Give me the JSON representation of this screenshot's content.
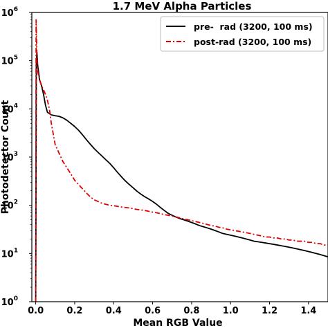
{
  "chart_data": {
    "type": "line",
    "title": "1.7 MeV Alpha Particles",
    "xlabel": "Mean RGB Value",
    "ylabel": "Photodetector Count",
    "xlim": [
      -0.02,
      1.5
    ],
    "ylim": [
      1,
      1000000
    ],
    "yscale": "log",
    "x_ticks": [
      "0.0",
      "0.2",
      "0.4",
      "0.6",
      "0.8",
      "1.0",
      "1.2",
      "1.4"
    ],
    "y_ticks": [
      {
        "base": "10",
        "exp": "0"
      },
      {
        "base": "10",
        "exp": "1"
      },
      {
        "base": "10",
        "exp": "2"
      },
      {
        "base": "10",
        "exp": "3"
      },
      {
        "base": "10",
        "exp": "4"
      },
      {
        "base": "10",
        "exp": "5"
      },
      {
        "base": "10",
        "exp": "6"
      }
    ],
    "legend_position": "top-right",
    "series": [
      {
        "name": "pre-  rad (3200, 100 ms)",
        "color": "#000000",
        "dash": "solid",
        "x": [
          0.0,
          0.003,
          0.006,
          0.01,
          0.02,
          0.03,
          0.04,
          0.05,
          0.06,
          0.08,
          0.1,
          0.12,
          0.14,
          0.16,
          0.18,
          0.2,
          0.22,
          0.24,
          0.26,
          0.28,
          0.3,
          0.32,
          0.34,
          0.36,
          0.38,
          0.4,
          0.42,
          0.44,
          0.46,
          0.48,
          0.5,
          0.52,
          0.54,
          0.56,
          0.58,
          0.6,
          0.62,
          0.64,
          0.66,
          0.68,
          0.7,
          0.72,
          0.74,
          0.76,
          0.78,
          0.8,
          0.82,
          0.84,
          0.86,
          0.88,
          0.9,
          0.92,
          0.94,
          0.96,
          0.98,
          1.0,
          1.02,
          1.04,
          1.06,
          1.08,
          1.1,
          1.12,
          1.14,
          1.16,
          1.18,
          1.2,
          1.22,
          1.24,
          1.26,
          1.28,
          1.3,
          1.32,
          1.34,
          1.36,
          1.38,
          1.4,
          1.42,
          1.44,
          1.46,
          1.48,
          1.5
        ],
        "y": [
          1,
          100000,
          150000,
          80000,
          40000,
          30000,
          20000,
          12000,
          8500,
          7500,
          7200,
          7000,
          6500,
          5800,
          5000,
          4300,
          3600,
          2900,
          2300,
          1850,
          1500,
          1250,
          1050,
          880,
          740,
          600,
          480,
          390,
          320,
          270,
          230,
          195,
          170,
          150,
          135,
          120,
          105,
          90,
          78,
          68,
          62,
          57,
          53,
          50,
          47,
          44,
          41,
          38,
          36,
          34,
          32,
          30,
          28,
          26,
          25,
          24,
          23,
          22,
          21,
          20,
          19,
          18,
          17.5,
          17,
          16.5,
          16,
          15.5,
          15,
          14.5,
          14,
          13.5,
          13,
          12.5,
          12,
          11.5,
          11,
          10.5,
          10,
          9.5,
          9,
          8.5
        ]
      },
      {
        "name": "post-rad (3200, 100 ms)",
        "color": "#e00000",
        "dash": "dashdot",
        "x": [
          0.0,
          0.002,
          0.004,
          0.006,
          0.01,
          0.02,
          0.03,
          0.04,
          0.05,
          0.06,
          0.07,
          0.08,
          0.09,
          0.1,
          0.12,
          0.14,
          0.16,
          0.18,
          0.2,
          0.22,
          0.24,
          0.26,
          0.28,
          0.3,
          0.32,
          0.34,
          0.36,
          0.38,
          0.4,
          0.42,
          0.44,
          0.46,
          0.48,
          0.5,
          0.52,
          0.54,
          0.56,
          0.58,
          0.6,
          0.62,
          0.64,
          0.66,
          0.68,
          0.7,
          0.72,
          0.74,
          0.76,
          0.78,
          0.8,
          0.82,
          0.84,
          0.86,
          0.88,
          0.9,
          0.92,
          0.94,
          0.96,
          0.98,
          1.0,
          1.02,
          1.04,
          1.06,
          1.08,
          1.1,
          1.12,
          1.14,
          1.16,
          1.18,
          1.2,
          1.22,
          1.24,
          1.26,
          1.28,
          1.3,
          1.32,
          1.34,
          1.36,
          1.38,
          1.4,
          1.42,
          1.44,
          1.46,
          1.48,
          1.5
        ],
        "y": [
          1,
          700000,
          300000,
          120000,
          60000,
          40000,
          30000,
          25000,
          20000,
          15000,
          10000,
          5000,
          3000,
          1800,
          1200,
          800,
          600,
          450,
          330,
          270,
          220,
          180,
          150,
          130,
          120,
          110,
          105,
          100,
          98,
          95,
          92,
          90,
          88,
          85,
          82,
          80,
          78,
          75,
          72,
          70,
          67,
          64,
          62,
          60,
          57,
          55,
          52,
          50,
          48,
          46,
          44,
          42,
          40,
          38,
          37,
          35,
          34,
          32,
          31,
          30,
          29,
          28,
          27,
          26,
          25,
          24,
          23,
          22,
          22,
          21,
          21,
          20,
          20,
          19,
          19,
          18,
          18,
          18,
          17,
          17,
          16,
          16,
          15,
          15
        ]
      }
    ]
  }
}
